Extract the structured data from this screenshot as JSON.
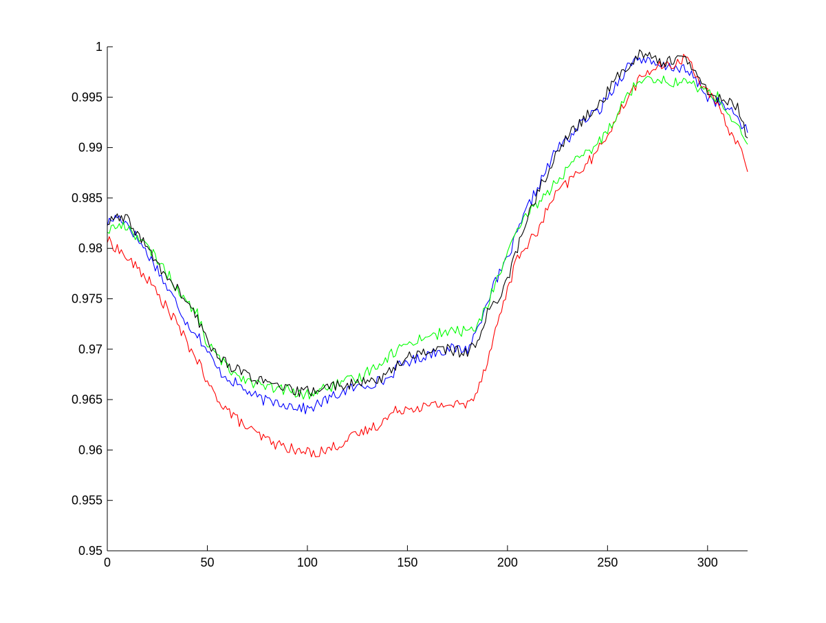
{
  "chart_data": {
    "type": "line",
    "title": "",
    "xlabel": "",
    "ylabel": "",
    "xlim": [
      0,
      320
    ],
    "ylim": [
      0.95,
      1.0
    ],
    "x_ticks": [
      0,
      50,
      100,
      150,
      200,
      250,
      300
    ],
    "x_tick_labels": [
      "0",
      "50",
      "100",
      "150",
      "200",
      "250",
      "300"
    ],
    "y_ticks": [
      0.95,
      0.955,
      0.96,
      0.965,
      0.97,
      0.975,
      0.98,
      0.985,
      0.99,
      0.995,
      1.0
    ],
    "y_tick_labels": [
      "0.95",
      "0.955",
      "0.96",
      "0.965",
      "0.97",
      "0.975",
      "0.98",
      "0.985",
      "0.99",
      "0.995",
      "1"
    ],
    "grid": false,
    "legend": "none",
    "series": [
      {
        "color": "#0000ff",
        "x": [
          0,
          5,
          10,
          15,
          20,
          25,
          30,
          35,
          40,
          45,
          50,
          55,
          60,
          65,
          70,
          75,
          80,
          85,
          90,
          95,
          100,
          105,
          110,
          115,
          120,
          125,
          130,
          135,
          140,
          145,
          150,
          155,
          160,
          165,
          170,
          175,
          180,
          185,
          190,
          195,
          200,
          205,
          210,
          215,
          220,
          225,
          230,
          235,
          240,
          245,
          250,
          255,
          260,
          265,
          270,
          275,
          280,
          285,
          290,
          295,
          300,
          305,
          310,
          315,
          320
        ],
        "y": [
          0.9825,
          0.9832,
          0.9825,
          0.981,
          0.9795,
          0.978,
          0.976,
          0.9745,
          0.9725,
          0.9715,
          0.9698,
          0.968,
          0.9672,
          0.9665,
          0.9658,
          0.9652,
          0.9648,
          0.9648,
          0.9645,
          0.9643,
          0.964,
          0.9645,
          0.965,
          0.9655,
          0.966,
          0.9662,
          0.9665,
          0.9668,
          0.967,
          0.9682,
          0.9688,
          0.969,
          0.9695,
          0.9698,
          0.97,
          0.97,
          0.97,
          0.972,
          0.975,
          0.977,
          0.979,
          0.9815,
          0.984,
          0.986,
          0.988,
          0.99,
          0.9908,
          0.992,
          0.993,
          0.9935,
          0.995,
          0.9965,
          0.998,
          0.999,
          0.9985,
          0.998,
          0.998,
          0.998,
          0.9975,
          0.9965,
          0.995,
          0.9945,
          0.9938,
          0.993,
          0.9915
        ]
      },
      {
        "color": "#ff0000",
        "x": [
          0,
          5,
          10,
          15,
          20,
          25,
          30,
          35,
          40,
          45,
          50,
          55,
          60,
          65,
          70,
          75,
          80,
          85,
          90,
          95,
          100,
          105,
          110,
          115,
          120,
          125,
          130,
          135,
          140,
          145,
          150,
          155,
          160,
          165,
          170,
          175,
          180,
          185,
          190,
          195,
          200,
          205,
          210,
          215,
          220,
          225,
          230,
          235,
          240,
          245,
          250,
          255,
          260,
          265,
          270,
          275,
          280,
          285,
          290,
          295,
          300,
          305,
          310,
          315,
          320
        ],
        "y": [
          0.9808,
          0.98,
          0.979,
          0.978,
          0.977,
          0.9755,
          0.974,
          0.9725,
          0.9705,
          0.969,
          0.9665,
          0.9652,
          0.964,
          0.963,
          0.9622,
          0.9615,
          0.961,
          0.9605,
          0.9603,
          0.9598,
          0.9598,
          0.9598,
          0.96,
          0.9605,
          0.961,
          0.9615,
          0.962,
          0.9625,
          0.9632,
          0.964,
          0.9642,
          0.9643,
          0.9643,
          0.9645,
          0.9645,
          0.9645,
          0.9645,
          0.966,
          0.969,
          0.9725,
          0.976,
          0.979,
          0.9805,
          0.9815,
          0.984,
          0.9855,
          0.9865,
          0.9875,
          0.9885,
          0.9895,
          0.9915,
          0.993,
          0.995,
          0.9965,
          0.9975,
          0.998,
          0.998,
          0.9985,
          0.999,
          0.997,
          0.9955,
          0.994,
          0.992,
          0.9905,
          0.988
        ]
      },
      {
        "color": "#00ff00",
        "x": [
          0,
          5,
          10,
          15,
          20,
          25,
          30,
          35,
          40,
          45,
          50,
          55,
          60,
          65,
          70,
          75,
          80,
          85,
          90,
          95,
          100,
          105,
          110,
          115,
          120,
          125,
          130,
          135,
          140,
          145,
          150,
          155,
          160,
          165,
          170,
          175,
          180,
          185,
          190,
          195,
          200,
          205,
          210,
          215,
          220,
          225,
          230,
          235,
          240,
          245,
          250,
          255,
          260,
          265,
          270,
          275,
          280,
          285,
          290,
          295,
          300,
          305,
          310,
          315,
          320
        ],
        "y": [
          0.9818,
          0.9822,
          0.9822,
          0.9812,
          0.98,
          0.979,
          0.9775,
          0.976,
          0.9745,
          0.9735,
          0.9705,
          0.9693,
          0.9682,
          0.9675,
          0.967,
          0.9665,
          0.9662,
          0.966,
          0.966,
          0.9655,
          0.9655,
          0.9658,
          0.9662,
          0.9665,
          0.9668,
          0.967,
          0.9678,
          0.9685,
          0.9692,
          0.97,
          0.9705,
          0.971,
          0.9713,
          0.9715,
          0.9717,
          0.9718,
          0.9718,
          0.9722,
          0.9745,
          0.977,
          0.9795,
          0.9815,
          0.9835,
          0.9845,
          0.9855,
          0.9868,
          0.9878,
          0.9888,
          0.9895,
          0.9903,
          0.9918,
          0.9935,
          0.9952,
          0.9965,
          0.9972,
          0.9968,
          0.9965,
          0.9965,
          0.9965,
          0.996,
          0.9955,
          0.995,
          0.9935,
          0.992,
          0.99
        ]
      },
      {
        "color": "#000000",
        "x": [
          0,
          5,
          10,
          15,
          20,
          25,
          30,
          35,
          40,
          45,
          50,
          55,
          60,
          65,
          70,
          75,
          80,
          85,
          90,
          95,
          100,
          105,
          110,
          115,
          120,
          125,
          130,
          135,
          140,
          145,
          150,
          155,
          160,
          165,
          170,
          175,
          180,
          185,
          190,
          195,
          200,
          205,
          210,
          215,
          220,
          225,
          230,
          235,
          240,
          245,
          250,
          255,
          260,
          265,
          270,
          275,
          280,
          285,
          290,
          295,
          300,
          305,
          310,
          315,
          320
        ],
        "y": [
          0.9825,
          0.983,
          0.9828,
          0.9815,
          0.98,
          0.9785,
          0.977,
          0.976,
          0.9745,
          0.973,
          0.9708,
          0.9695,
          0.9685,
          0.968,
          0.9675,
          0.967,
          0.9665,
          0.9663,
          0.966,
          0.9658,
          0.9658,
          0.966,
          0.9662,
          0.9665,
          0.9665,
          0.9665,
          0.9668,
          0.967,
          0.9675,
          0.9685,
          0.9692,
          0.9696,
          0.9698,
          0.97,
          0.97,
          0.9698,
          0.9695,
          0.971,
          0.9735,
          0.975,
          0.977,
          0.98,
          0.983,
          0.9855,
          0.9875,
          0.9895,
          0.991,
          0.9922,
          0.9932,
          0.994,
          0.9955,
          0.997,
          0.998,
          0.9992,
          0.9995,
          0.9985,
          0.9985,
          0.999,
          0.9985,
          0.997,
          0.9955,
          0.995,
          0.9945,
          0.994,
          0.991
        ]
      }
    ]
  }
}
